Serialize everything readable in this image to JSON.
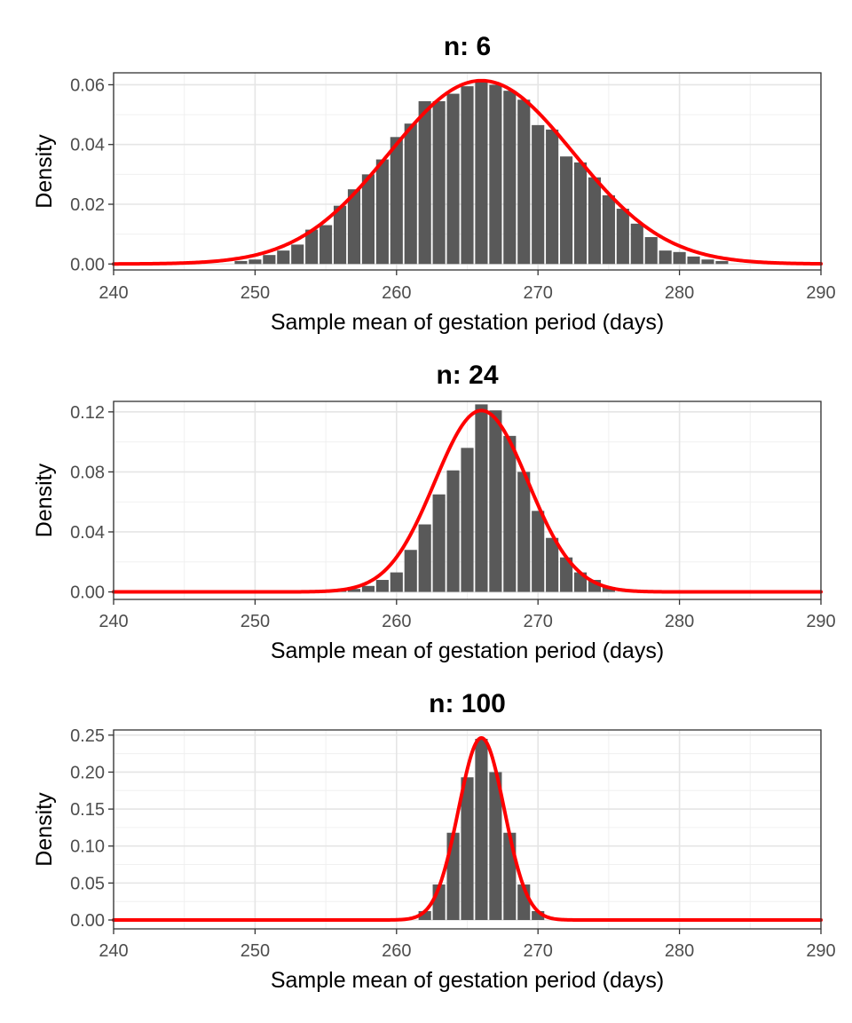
{
  "chart_data": [
    {
      "type": "bar",
      "title": "n: 6",
      "xlabel": "Sample mean of gestation period (days)",
      "ylabel": "Density",
      "xlim": [
        240,
        290
      ],
      "ylim": [
        -0.002,
        0.064
      ],
      "x_ticks": [
        240,
        250,
        260,
        270,
        280,
        290
      ],
      "y_ticks": [
        0.0,
        0.02,
        0.04,
        0.06
      ],
      "y_tick_labels": [
        "0.00",
        "0.02",
        "0.04",
        "0.06"
      ],
      "bar_width": 1,
      "grid": true,
      "bars": {
        "x": [
          249,
          250,
          251,
          252,
          253,
          254,
          255,
          256,
          257,
          258,
          259,
          260,
          261,
          262,
          263,
          264,
          265,
          266,
          267,
          268,
          269,
          270,
          271,
          272,
          273,
          274,
          275,
          276,
          277,
          278,
          279,
          280,
          281,
          282,
          283
        ],
        "values": [
          0.001,
          0.0015,
          0.003,
          0.0045,
          0.0065,
          0.0115,
          0.013,
          0.0195,
          0.025,
          0.03,
          0.035,
          0.0425,
          0.047,
          0.0545,
          0.0545,
          0.057,
          0.0595,
          0.061,
          0.06,
          0.058,
          0.055,
          0.0465,
          0.045,
          0.036,
          0.034,
          0.029,
          0.023,
          0.0185,
          0.0135,
          0.009,
          0.0045,
          0.004,
          0.0025,
          0.0015,
          0.001
        ],
        "color": "#595959"
      },
      "curve": {
        "mean": 266,
        "sd": 6.5,
        "color": "#ff0000"
      }
    },
    {
      "type": "bar",
      "title": "n: 24",
      "xlabel": "Sample mean of gestation period (days)",
      "ylabel": "Density",
      "xlim": [
        240,
        290
      ],
      "ylim": [
        -0.005,
        0.127
      ],
      "x_ticks": [
        240,
        250,
        260,
        270,
        280,
        290
      ],
      "y_ticks": [
        0.0,
        0.04,
        0.08,
        0.12
      ],
      "y_tick_labels": [
        "0.00",
        "0.04",
        "0.08",
        "0.12"
      ],
      "bar_width": 1,
      "grid": true,
      "bars": {
        "x": [
          256,
          257,
          258,
          259,
          260,
          261,
          262,
          263,
          264,
          265,
          266,
          267,
          268,
          269,
          270,
          271,
          272,
          273,
          274,
          275
        ],
        "values": [
          0.001,
          0.002,
          0.004,
          0.008,
          0.013,
          0.028,
          0.045,
          0.065,
          0.081,
          0.096,
          0.125,
          0.121,
          0.104,
          0.08,
          0.054,
          0.036,
          0.023,
          0.013,
          0.008,
          0.003
        ],
        "color": "#595959"
      },
      "curve": {
        "mean": 266,
        "sd": 3.3,
        "color": "#ff0000"
      }
    },
    {
      "type": "bar",
      "title": "n: 100",
      "xlabel": "Sample mean of gestation period (days)",
      "ylabel": "Density",
      "xlim": [
        240,
        290
      ],
      "ylim": [
        -0.012,
        0.257
      ],
      "x_ticks": [
        240,
        250,
        260,
        270,
        280,
        290
      ],
      "y_ticks": [
        0.0,
        0.05,
        0.1,
        0.15,
        0.2,
        0.25
      ],
      "y_tick_labels": [
        "0.00",
        "0.05",
        "0.10",
        "0.15",
        "0.20",
        "0.25"
      ],
      "bar_width": 1,
      "grid": true,
      "bars": {
        "x": [
          262,
          263,
          264,
          265,
          266,
          267,
          268,
          269,
          270
        ],
        "values": [
          0.012,
          0.048,
          0.118,
          0.193,
          0.245,
          0.2,
          0.118,
          0.048,
          0.012
        ],
        "color": "#595959"
      },
      "curve": {
        "mean": 266,
        "sd": 1.62,
        "color": "#ff0000"
      }
    }
  ]
}
